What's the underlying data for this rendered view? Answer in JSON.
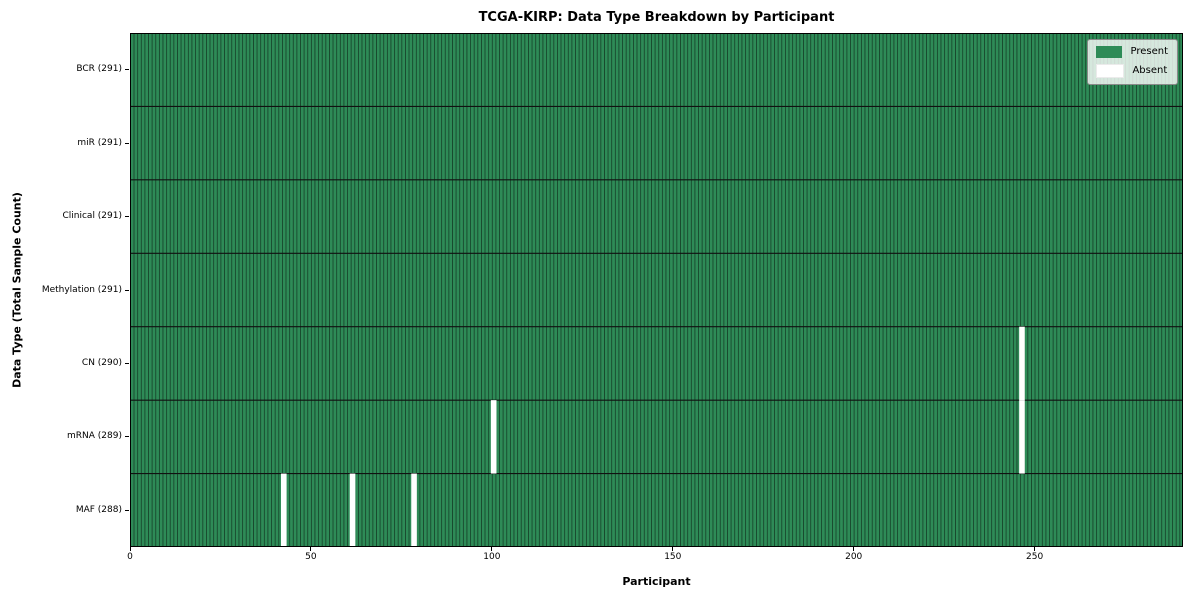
{
  "chart_data": {
    "type": "heatmap",
    "title": "TCGA-KIRP: Data Type Breakdown by Participant",
    "xlabel": "Participant",
    "ylabel": "Data Type (Total Sample Count)",
    "n_participants": 291,
    "xlim": [
      0,
      291
    ],
    "x_ticks": [
      0,
      50,
      100,
      150,
      200,
      250
    ],
    "grid": false,
    "legend_position": "upper right",
    "rows": [
      {
        "label": "BCR (291)",
        "data_type": "BCR",
        "total": 291,
        "absent_participants": []
      },
      {
        "label": "miR (291)",
        "data_type": "miR",
        "total": 291,
        "absent_participants": []
      },
      {
        "label": "Clinical (291)",
        "data_type": "Clinical",
        "total": 291,
        "absent_participants": []
      },
      {
        "label": "Methylation (291)",
        "data_type": "Methylation",
        "total": 291,
        "absent_participants": []
      },
      {
        "label": "CN (290)",
        "data_type": "CN",
        "total": 290,
        "absent_participants": [
          246
        ]
      },
      {
        "label": "mRNA (289)",
        "data_type": "mRNA",
        "total": 289,
        "absent_participants": [
          100,
          246
        ]
      },
      {
        "label": "MAF (288)",
        "data_type": "MAF",
        "total": 288,
        "absent_participants": [
          42,
          61,
          78
        ]
      }
    ],
    "legend_items": [
      {
        "label": "Present",
        "color": "#2e8b57"
      },
      {
        "label": "Absent",
        "color": "#ffffff"
      }
    ],
    "colors": {
      "present": "#2e8b57",
      "absent": "#ffffff",
      "bar_edge": "rgba(0,0,0,0.55)",
      "row_separator": "#111111",
      "spine": "#000000",
      "legend_border": "#8a8a8a"
    }
  }
}
